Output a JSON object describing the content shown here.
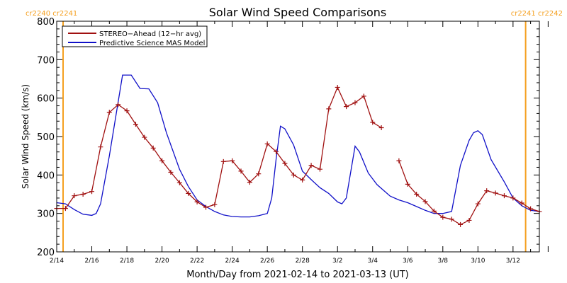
{
  "chart_data": {
    "type": "line",
    "title": "Solar Wind Speed Comparisons",
    "xlabel": "Month/Day from 2021-02-14 to 2021-03-13 (UT)",
    "ylabel": "Solar Wind Speed (km/s)",
    "xlim": [
      "2021-02-14",
      "2021-03-13"
    ],
    "ylim": [
      200,
      800
    ],
    "x_ticks": [
      "2/14",
      "2/16",
      "2/18",
      "2/20",
      "2/22",
      "2/24",
      "2/26",
      "2/28",
      "3/2",
      "3/4",
      "3/6",
      "3/8",
      "3/10",
      "3/12"
    ],
    "y_ticks": [
      200,
      300,
      400,
      500,
      600,
      700,
      800
    ],
    "legend_position": "top-left",
    "carrington_markers": [
      {
        "date": "2021-02-14",
        "label": "cr2240 cr2241",
        "color": "#f5a020",
        "label_side": "left"
      },
      {
        "date": "2021-03-13",
        "label": "cr2241 cr2242",
        "color": "#f5a020",
        "label_side": "right"
      }
    ],
    "series": [
      {
        "name": "STEREO−Ahead (12−hr avg)",
        "color": "#a01010",
        "marker": "plus",
        "segments": [
          [
            [
              "2021-02-14T00:00",
              313
            ],
            [
              "2021-02-14T12:00",
              313
            ],
            [
              "2021-02-15T00:00",
              346
            ],
            [
              "2021-02-15T12:00",
              350
            ],
            [
              "2021-02-16T00:00",
              357
            ],
            [
              "2021-02-16T12:00",
              473
            ],
            [
              "2021-02-17T00:00",
              563
            ],
            [
              "2021-02-17T12:00",
              583
            ],
            [
              "2021-02-18T00:00",
              567
            ],
            [
              "2021-02-18T12:00",
              532
            ],
            [
              "2021-02-19T00:00",
              498
            ],
            [
              "2021-02-19T12:00",
              470
            ],
            [
              "2021-02-20T00:00",
              437
            ],
            [
              "2021-02-20T12:00",
              407
            ],
            [
              "2021-02-21T00:00",
              380
            ],
            [
              "2021-02-21T12:00",
              352
            ],
            [
              "2021-02-22T00:00",
              330
            ],
            [
              "2021-02-22T12:00",
              316
            ],
            [
              "2021-02-23T00:00",
              323
            ],
            [
              "2021-02-23T12:00",
              435
            ],
            [
              "2021-02-24T00:00",
              437
            ],
            [
              "2021-02-24T12:00",
              410
            ],
            [
              "2021-02-25T00:00",
              381
            ],
            [
              "2021-02-25T12:00",
              403
            ],
            [
              "2021-02-26T00:00",
              481
            ],
            [
              "2021-02-26T12:00",
              461
            ],
            [
              "2021-02-27T00:00",
              430
            ],
            [
              "2021-02-27T12:00",
              400
            ],
            [
              "2021-02-28T00:00",
              387
            ],
            [
              "2021-02-28T12:00",
              425
            ],
            [
              "2021-03-01T00:00",
              415
            ],
            [
              "2021-03-01T12:00",
              572
            ],
            [
              "2021-03-02T00:00",
              628
            ],
            [
              "2021-03-02T12:00",
              578
            ],
            [
              "2021-03-03T00:00",
              588
            ],
            [
              "2021-03-03T12:00",
              605
            ],
            [
              "2021-03-04T00:00",
              537
            ],
            [
              "2021-03-04T12:00",
              523
            ]
          ],
          [
            [
              "2021-03-05T12:00",
              437
            ],
            [
              "2021-03-06T00:00",
              376
            ],
            [
              "2021-03-06T12:00",
              350
            ],
            [
              "2021-03-07T00:00",
              331
            ],
            [
              "2021-03-07T12:00",
              306
            ],
            [
              "2021-03-08T00:00",
              290
            ],
            [
              "2021-03-08T12:00",
              285
            ],
            [
              "2021-03-09T00:00",
              271
            ],
            [
              "2021-03-09T12:00",
              282
            ],
            [
              "2021-03-10T00:00",
              325
            ],
            [
              "2021-03-10T12:00",
              359
            ],
            [
              "2021-03-11T00:00",
              353
            ],
            [
              "2021-03-11T12:00",
              346
            ],
            [
              "2021-03-12T00:00",
              340
            ],
            [
              "2021-03-12T12:00",
              327
            ],
            [
              "2021-03-13T00:00",
              312
            ],
            [
              "2021-03-13T12:00",
              305
            ]
          ]
        ]
      },
      {
        "name": "Predictive Science MAS Model",
        "color": "#1010c8",
        "marker": "none",
        "points": [
          [
            "2021-02-14T00:00",
            328
          ],
          [
            "2021-02-14T12:00",
            325
          ],
          [
            "2021-02-15T00:00",
            310
          ],
          [
            "2021-02-15T12:00",
            298
          ],
          [
            "2021-02-16T00:00",
            295
          ],
          [
            "2021-02-16T06:00",
            300
          ],
          [
            "2021-02-16T12:00",
            325
          ],
          [
            "2021-02-17T00:00",
            450
          ],
          [
            "2021-02-17T12:00",
            590
          ],
          [
            "2021-02-17T18:00",
            660
          ],
          [
            "2021-02-18T06:00",
            660
          ],
          [
            "2021-02-18T18:00",
            625
          ],
          [
            "2021-02-19T06:00",
            624
          ],
          [
            "2021-02-19T18:00",
            588
          ],
          [
            "2021-02-20T06:00",
            510
          ],
          [
            "2021-02-21T00:00",
            415
          ],
          [
            "2021-02-21T12:00",
            370
          ],
          [
            "2021-02-22T00:00",
            335
          ],
          [
            "2021-02-22T12:00",
            318
          ],
          [
            "2021-02-23T00:00",
            305
          ],
          [
            "2021-02-23T12:00",
            296
          ],
          [
            "2021-02-24T00:00",
            292
          ],
          [
            "2021-02-24T12:00",
            291
          ],
          [
            "2021-02-25T00:00",
            291
          ],
          [
            "2021-02-25T12:00",
            294
          ],
          [
            "2021-02-26T00:00",
            300
          ],
          [
            "2021-02-26T06:00",
            340
          ],
          [
            "2021-02-26T12:00",
            440
          ],
          [
            "2021-02-26T18:00",
            527
          ],
          [
            "2021-02-27T00:00",
            520
          ],
          [
            "2021-02-27T12:00",
            478
          ],
          [
            "2021-02-28T00:00",
            410
          ],
          [
            "2021-02-28T12:00",
            388
          ],
          [
            "2021-03-01T00:00",
            367
          ],
          [
            "2021-03-01T12:00",
            352
          ],
          [
            "2021-03-02T00:00",
            330
          ],
          [
            "2021-03-02T06:00",
            325
          ],
          [
            "2021-03-02T12:00",
            340
          ],
          [
            "2021-03-03T00:00",
            475
          ],
          [
            "2021-03-03T06:00",
            460
          ],
          [
            "2021-03-03T18:00",
            405
          ],
          [
            "2021-03-04T06:00",
            375
          ],
          [
            "2021-03-05T00:00",
            345
          ],
          [
            "2021-03-05T12:00",
            335
          ],
          [
            "2021-03-06T00:00",
            328
          ],
          [
            "2021-03-06T12:00",
            318
          ],
          [
            "2021-03-07T00:00",
            308
          ],
          [
            "2021-03-07T12:00",
            300
          ],
          [
            "2021-03-08T00:00",
            300
          ],
          [
            "2021-03-08T12:00",
            305
          ],
          [
            "2021-03-09T00:00",
            425
          ],
          [
            "2021-03-09T12:00",
            490
          ],
          [
            "2021-03-09T18:00",
            510
          ],
          [
            "2021-03-10T00:00",
            515
          ],
          [
            "2021-03-10T06:00",
            505
          ],
          [
            "2021-03-10T18:00",
            440
          ],
          [
            "2021-03-11T12:00",
            382
          ],
          [
            "2021-03-12T00:00",
            340
          ],
          [
            "2021-03-12T12:00",
            320
          ],
          [
            "2021-03-13T00:00",
            308
          ],
          [
            "2021-03-13T12:00",
            305
          ]
        ]
      }
    ]
  }
}
